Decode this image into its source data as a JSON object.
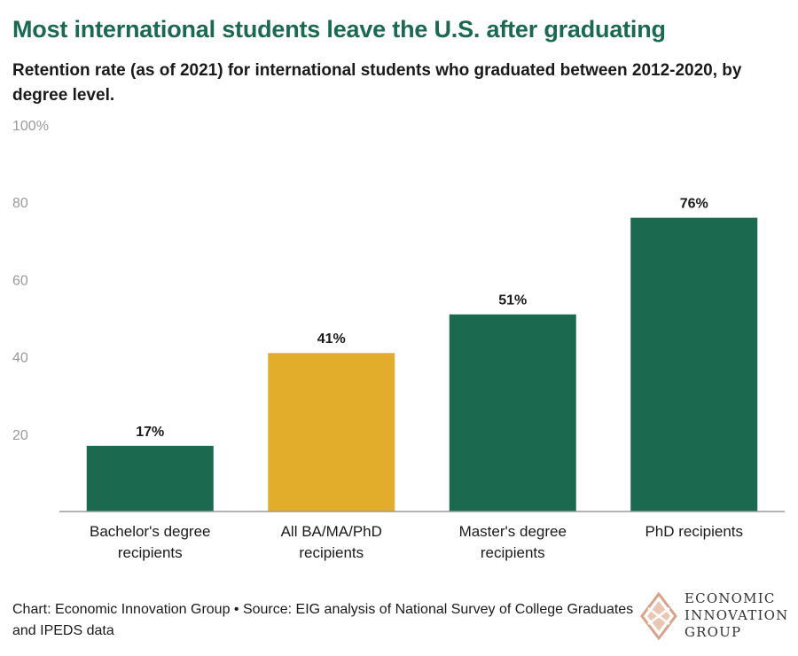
{
  "title": "Most international students leave the U.S. after graduating",
  "subtitle": "Retention rate (as of 2021) for international students who graduated between 2012-2020, by degree level.",
  "chart_data": {
    "type": "bar",
    "categories": [
      [
        "Bachelor's degree",
        "recipients"
      ],
      [
        "All BA/MA/PhD",
        "recipients"
      ],
      [
        "Master's degree",
        "recipients"
      ],
      [
        "PhD recipients"
      ]
    ],
    "values": [
      17,
      41,
      51,
      76
    ],
    "data_labels": [
      "17%",
      "41%",
      "51%",
      "76%"
    ],
    "ylim": [
      0,
      100
    ],
    "yticks": [
      {
        "value": 20,
        "label": "20"
      },
      {
        "value": 40,
        "label": "40"
      },
      {
        "value": 60,
        "label": "60"
      },
      {
        "value": 80,
        "label": "80"
      },
      {
        "value": 100,
        "label": "100%"
      }
    ],
    "grid": false,
    "colors": [
      "#1b6a4f",
      "#e1ad2b",
      "#1b6a4f",
      "#1b6a4f"
    ]
  },
  "footer": {
    "text": "Chart: Economic Innovation Group • Source: EIG analysis of National Survey of College Graduates and IPEDS data"
  },
  "logo": {
    "lines": [
      "ECONOMIC",
      "INNOVATION",
      "GROUP"
    ],
    "icon": "eig-diamond-logo-icon",
    "color": "#d6a38a"
  }
}
